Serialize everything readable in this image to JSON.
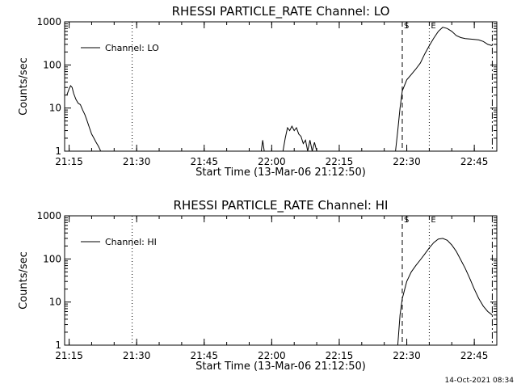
{
  "chart_data": [
    {
      "type": "line",
      "title": "RHESSI PARTICLE_RATE Channel: LO",
      "xlabel": "Start Time (13-Mar-06 21:12:50)",
      "ylabel": "Counts/sec",
      "yscale": "log",
      "ylim": [
        1,
        1000
      ],
      "xlim": [
        "21:14",
        "22:50"
      ],
      "xticks": [
        "21:15",
        "21:30",
        "21:45",
        "22:00",
        "22:15",
        "22:30",
        "22:45"
      ],
      "yticks": [
        "1",
        "10",
        "100",
        "1000"
      ],
      "legend": {
        "position": "top-left",
        "entries": [
          "Channel: LO"
        ]
      },
      "markers": [
        {
          "time": "21:29",
          "style": "dotted",
          "label": ""
        },
        {
          "time": "22:29",
          "style": "dashed",
          "label": "S"
        },
        {
          "time": "22:35",
          "style": "dotted",
          "label": "E"
        },
        {
          "time": "22:49",
          "style": "dashdot",
          "label": ""
        }
      ],
      "series": [
        {
          "name": "Channel: LO",
          "segments": [
            {
              "x": [
                "21:14:30",
                "21:15:00",
                "21:15:20",
                "21:15:40",
                "21:16:00",
                "21:16:30",
                "21:17:00",
                "21:17:30",
                "21:18:00",
                "21:18:30",
                "21:19:00",
                "21:19:30",
                "21:20:00",
                "21:20:30",
                "21:21:00",
                "21:21:30",
                "21:21:50",
                "21:22:00"
              ],
              "y": [
                20,
                28,
                33,
                30,
                22,
                16,
                13,
                12,
                9,
                7,
                5,
                3.5,
                2.5,
                2,
                1.6,
                1.3,
                1.1,
                1
              ]
            },
            {
              "x": [
                "21:57:40",
                "21:58:00",
                "21:58:20"
              ],
              "y": [
                1,
                1.8,
                1
              ]
            },
            {
              "x": [
                "22:02:30",
                "22:03:00",
                "22:03:30",
                "22:04:00",
                "22:04:30",
                "22:05:00",
                "22:05:30",
                "22:06:00",
                "22:06:30",
                "22:07:00",
                "22:07:30",
                "22:08:00",
                "22:08:30",
                "22:09:00",
                "22:09:30",
                "22:10:00"
              ],
              "y": [
                1,
                2,
                3.5,
                3,
                3.8,
                3,
                3.5,
                2.5,
                2.2,
                1.5,
                1.8,
                1,
                1.8,
                1,
                1.6,
                1
              ]
            },
            {
              "x": [
                "22:27:30",
                "22:28:00",
                "22:28:30",
                "22:29:00",
                "22:30:00",
                "22:31:00",
                "22:32:00",
                "22:33:00",
                "22:34:00",
                "22:35:00",
                "22:36:00",
                "22:37:00",
                "22:38:00",
                "22:39:00",
                "22:40:00",
                "22:41:00",
                "22:42:00",
                "22:43:00",
                "22:44:00",
                "22:45:00",
                "22:46:00",
                "22:47:00",
                "22:48:00",
                "22:49:00"
              ],
              "y": [
                1,
                3,
                10,
                25,
                45,
                60,
                80,
                110,
                180,
                280,
                420,
                600,
                750,
                700,
                600,
                480,
                430,
                410,
                400,
                390,
                380,
                350,
                300,
                280
              ]
            }
          ]
        }
      ]
    },
    {
      "type": "line",
      "title": "RHESSI PARTICLE_RATE Channel: HI",
      "xlabel": "Start Time (13-Mar-06 21:12:50)",
      "ylabel": "Counts/sec",
      "yscale": "log",
      "ylim": [
        1,
        1000
      ],
      "xlim": [
        "21:14",
        "22:50"
      ],
      "xticks": [
        "21:15",
        "21:30",
        "21:45",
        "22:00",
        "22:15",
        "22:30",
        "22:45"
      ],
      "yticks": [
        "1",
        "10",
        "100",
        "1000"
      ],
      "legend": {
        "position": "top-left",
        "entries": [
          "Channel: HI"
        ]
      },
      "markers": [
        {
          "time": "21:29",
          "style": "dotted",
          "label": ""
        },
        {
          "time": "22:29",
          "style": "dashed",
          "label": "S"
        },
        {
          "time": "22:35",
          "style": "dotted",
          "label": "E"
        },
        {
          "time": "22:49",
          "style": "dashdot",
          "label": ""
        }
      ],
      "series": [
        {
          "name": "Channel: HI",
          "segments": [
            {
              "x": [
                "22:28:00",
                "22:28:30",
                "22:29:00",
                "22:30:00",
                "22:31:00",
                "22:32:00",
                "22:33:00",
                "22:34:00",
                "22:35:00",
                "22:36:00",
                "22:37:00",
                "22:38:00",
                "22:39:00",
                "22:40:00",
                "22:41:00",
                "22:42:00",
                "22:43:00",
                "22:44:00",
                "22:45:00",
                "22:46:00",
                "22:47:00",
                "22:48:00",
                "22:49:00"
              ],
              "y": [
                1,
                5,
                12,
                30,
                50,
                70,
                95,
                130,
                180,
                240,
                290,
                300,
                270,
                210,
                150,
                95,
                60,
                35,
                20,
                12,
                8,
                6,
                5
              ]
            }
          ]
        }
      ]
    }
  ],
  "footer": {
    "timestamp": "14-Oct-2021 08:34"
  }
}
